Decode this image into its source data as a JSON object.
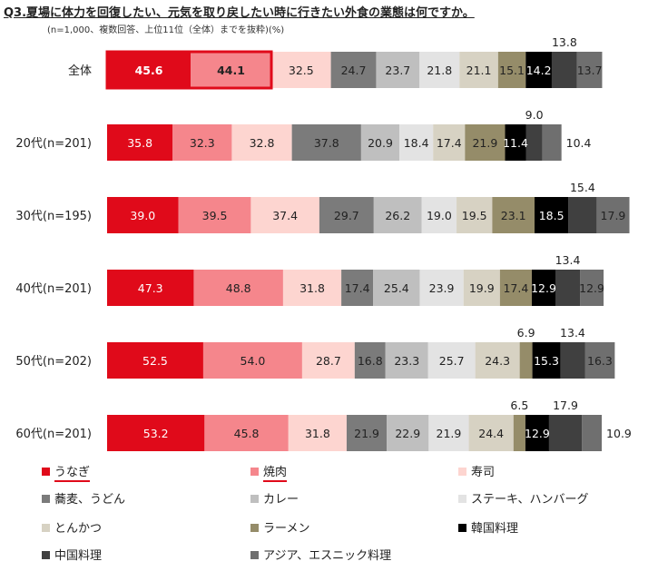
{
  "chart_data": {
    "type": "bar",
    "orientation": "horizontal",
    "stacked": true,
    "title": "Q3.夏場に体力を回復したい、元気を取り戻したい時に行きたい外食の業態は何ですか。",
    "note": "(n=1,000、複数回答、上位11位（全体）までを抜粋)(%)",
    "categories": [
      "全体",
      "20代(n=201)",
      "30代(n=195)",
      "40代(n=201)",
      "50代(n=202)",
      "60代(n=201)"
    ],
    "series": [
      {
        "name": "うなぎ",
        "color": "#e00a1a",
        "label_color": "#ffffff",
        "values": [
          45.6,
          35.8,
          39.0,
          47.3,
          52.5,
          53.2
        ]
      },
      {
        "name": "焼肉",
        "color": "#f5868c",
        "label_color": "#222222",
        "values": [
          44.1,
          32.3,
          39.5,
          48.8,
          54.0,
          45.8
        ]
      },
      {
        "name": "寿司",
        "color": "#fdd5d0",
        "label_color": "#222222",
        "values": [
          32.5,
          32.8,
          37.4,
          31.8,
          28.7,
          31.8
        ]
      },
      {
        "name": "蕎麦、うどん",
        "color": "#7b7b7b",
        "label_color": "#222222",
        "values": [
          24.7,
          37.8,
          29.7,
          17.4,
          16.8,
          21.9
        ]
      },
      {
        "name": "カレー",
        "color": "#bfbfbf",
        "label_color": "#222222",
        "values": [
          23.7,
          20.9,
          26.2,
          25.4,
          23.3,
          22.9
        ]
      },
      {
        "name": "ステーキ、ハンバーグ",
        "color": "#e3e3e3",
        "label_color": "#222222",
        "values": [
          21.8,
          18.4,
          19.0,
          23.9,
          25.7,
          21.9
        ]
      },
      {
        "name": "とんかつ",
        "color": "#d7d2c3",
        "label_color": "#222222",
        "values": [
          21.1,
          17.4,
          19.5,
          19.9,
          24.3,
          24.4
        ]
      },
      {
        "name": "ラーメン",
        "color": "#958c69",
        "label_color": "#222222",
        "values": [
          15.1,
          21.9,
          23.1,
          17.4,
          6.9,
          6.5
        ]
      },
      {
        "name": "韓国料理",
        "color": "#000000",
        "label_color": "#ffffff",
        "values": [
          14.2,
          11.4,
          18.5,
          12.9,
          15.3,
          12.9
        ]
      },
      {
        "name": "中国料理",
        "color": "#404040",
        "label_color": "#222222",
        "values": [
          13.8,
          9.0,
          15.4,
          13.4,
          13.4,
          17.9
        ]
      },
      {
        "name": "アジア、エスニック料理",
        "color": "#6f6f6f",
        "label_color": "#222222",
        "values": [
          13.7,
          10.4,
          17.9,
          12.9,
          16.3,
          10.9
        ]
      }
    ],
    "label_above": [
      [
        9
      ],
      [
        9
      ],
      [
        9
      ],
      [
        9
      ],
      [
        7,
        9
      ],
      [
        7,
        9
      ]
    ],
    "label_right": [
      [],
      [
        10
      ],
      [],
      [],
      [],
      [
        10
      ]
    ],
    "highlight": {
      "row": 0,
      "segments": [
        0,
        1
      ],
      "color": "#e00a1a"
    },
    "underlined_legend": [
      0,
      1
    ],
    "legend_position": "bottom",
    "grid": false
  }
}
